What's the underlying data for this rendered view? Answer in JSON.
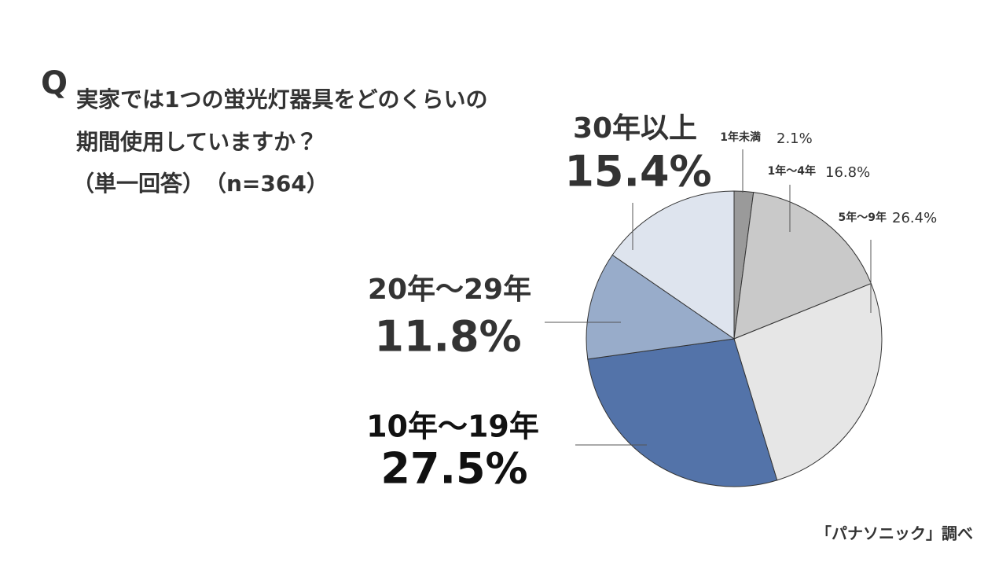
{
  "chart_data": {
    "type": "pie",
    "question_mark": "Q",
    "title_lines": [
      "実家では1つの蛍光灯器具をどのくらいの",
      "期間使用していますか？"
    ],
    "subtitle": "（単一回答）　（n=364）",
    "categories": [
      "1年未満",
      "1年～4年",
      "5年～9年",
      "10年～19年",
      "20年～29年",
      "30年以上"
    ],
    "values": [
      2.1,
      16.8,
      26.4,
      27.5,
      11.8,
      15.4
    ],
    "value_labels": [
      "2.1%",
      "16.8%",
      "26.4%",
      "27.5%",
      "11.8%",
      "15.4%"
    ],
    "colors": [
      "#9a9a9a",
      "#c9c9c9",
      "#e6e6e6",
      "#5373a9",
      "#98acca",
      "#dee4ee"
    ],
    "source": "「パナソニック」調べ"
  }
}
